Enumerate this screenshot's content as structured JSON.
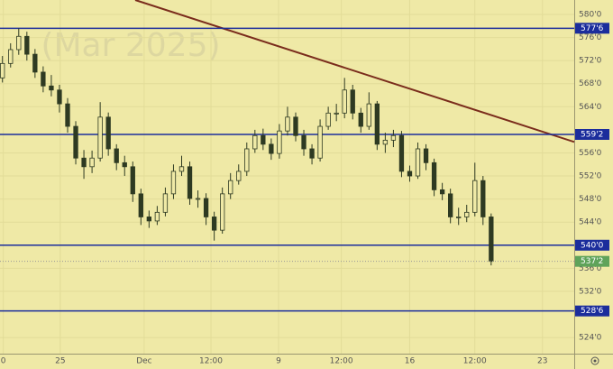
{
  "chart_data": {
    "type": "candlestick",
    "watermark": "(Mar 2025)",
    "open": [
      569.0,
      571.5,
      573.9,
      576.2,
      573.1,
      570.0,
      567.6,
      566.9,
      564.5,
      560.6,
      555.1,
      553.6,
      555.1,
      562.2,
      556.7,
      554.3,
      553.6,
      548.9,
      544.9,
      544.2,
      545.7,
      548.9,
      552.8,
      553.6,
      548.1,
      548.1,
      544.9,
      542.6,
      548.9,
      551.2,
      552.8,
      556.7,
      559.0,
      557.5,
      555.9,
      559.8,
      562.2,
      559.0,
      556.7,
      555.1,
      560.6,
      562.9,
      562.9,
      566.9,
      562.9,
      560.6,
      564.5,
      557.5,
      558.2,
      559.0,
      552.8,
      552.0,
      556.7,
      554.3,
      549.6,
      548.9,
      544.9,
      544.9,
      545.7,
      551.2,
      544.9
    ],
    "high": [
      572.8,
      575.0,
      577.6,
      577.0,
      574.0,
      571.0,
      569.5,
      567.8,
      565.5,
      561.5,
      556.5,
      556.4,
      564.8,
      563.0,
      557.5,
      555.5,
      554.5,
      549.8,
      546.0,
      546.8,
      550.0,
      554.0,
      555.5,
      554.5,
      549.5,
      549.0,
      545.8,
      550.0,
      552.5,
      554.0,
      557.8,
      560.0,
      560.2,
      558.5,
      561.0,
      564.0,
      563.0,
      560.0,
      557.5,
      561.8,
      564.0,
      564.5,
      569.0,
      567.8,
      563.8,
      566.5,
      565.0,
      559.5,
      560.0,
      559.8,
      553.8,
      557.8,
      557.5,
      555.0,
      550.8,
      549.8,
      546.5,
      547.0,
      554.3,
      552.0,
      545.5
    ],
    "low": [
      568.2,
      570.8,
      573.0,
      572.0,
      569.0,
      566.5,
      565.8,
      563.0,
      559.5,
      554.0,
      551.5,
      552.5,
      554.5,
      555.5,
      553.0,
      552.0,
      547.5,
      543.5,
      543.0,
      543.5,
      545.0,
      548.0,
      552.0,
      547.0,
      546.5,
      543.5,
      540.8,
      542.0,
      548.0,
      550.5,
      552.0,
      556.0,
      556.5,
      554.8,
      555.0,
      559.0,
      558.0,
      555.5,
      554.0,
      554.5,
      560.0,
      561.5,
      562.0,
      561.8,
      559.5,
      560.0,
      556.5,
      556.0,
      557.0,
      551.8,
      551.0,
      551.5,
      553.0,
      548.5,
      547.8,
      543.8,
      543.5,
      544.0,
      545.0,
      543.5,
      536.5
    ],
    "close": [
      571.5,
      573.9,
      576.2,
      573.1,
      570.0,
      567.6,
      566.9,
      564.5,
      560.6,
      555.1,
      553.6,
      555.1,
      562.2,
      556.7,
      554.3,
      553.6,
      548.9,
      544.9,
      544.2,
      545.7,
      548.9,
      552.8,
      553.6,
      548.1,
      548.1,
      544.9,
      542.6,
      548.9,
      551.2,
      552.8,
      556.7,
      559.0,
      557.5,
      555.9,
      559.8,
      562.2,
      559.0,
      556.7,
      555.1,
      560.6,
      562.9,
      562.9,
      566.9,
      562.9,
      560.6,
      564.5,
      557.5,
      558.2,
      559.0,
      552.8,
      552.0,
      556.7,
      554.3,
      549.6,
      548.9,
      544.9,
      544.9,
      545.7,
      551.2,
      544.9,
      537.2
    ],
    "color": "#2e3a22",
    "xlim": [
      -0.3,
      70.2
    ],
    "xticks": [
      {
        "value": 0.1,
        "label": "0"
      },
      {
        "value": 7.1,
        "label": "25"
      },
      {
        "value": 17.4,
        "label": "Dec"
      },
      {
        "value": 25.6,
        "label": "12:00"
      },
      {
        "value": 33.9,
        "label": "9"
      },
      {
        "value": 41.6,
        "label": "12:00"
      },
      {
        "value": 50.0,
        "label": "16"
      },
      {
        "value": 58.0,
        "label": "12:00"
      },
      {
        "value": 66.3,
        "label": "23"
      }
    ],
    "ylim": [
      521.2,
      582.5
    ],
    "yticks": [
      {
        "value": 580,
        "label": "580'0"
      },
      {
        "value": 576,
        "label": "576'0"
      },
      {
        "value": 572,
        "label": "572'0"
      },
      {
        "value": 568,
        "label": "568'0"
      },
      {
        "value": 564,
        "label": "564'0"
      },
      {
        "value": 556,
        "label": "556'0"
      },
      {
        "value": 552,
        "label": "552'0"
      },
      {
        "value": 548,
        "label": "548'0"
      },
      {
        "value": 544,
        "label": "544'0"
      },
      {
        "value": 536,
        "label": "536'0"
      },
      {
        "value": 532,
        "label": "532'0"
      },
      {
        "value": 524,
        "label": "524'0"
      }
    ],
    "grid": true,
    "levels": [
      {
        "value": 577.6,
        "label": "577'6",
        "color": "#1b2d9c"
      },
      {
        "value": 559.2,
        "label": "559'2",
        "color": "#1b2d9c"
      },
      {
        "value": 540.0,
        "label": "540'0",
        "color": "#1b2d9c"
      },
      {
        "value": 528.6,
        "label": "528'6",
        "color": "#1b2d9c"
      }
    ],
    "last_price": {
      "value": 537.2,
      "label": "537'2",
      "color": "#5fa35a"
    },
    "trendline": {
      "x": [
        16.3,
        70.2
      ],
      "y": [
        582.5,
        557.9
      ],
      "color": "#7a2c1c"
    }
  }
}
